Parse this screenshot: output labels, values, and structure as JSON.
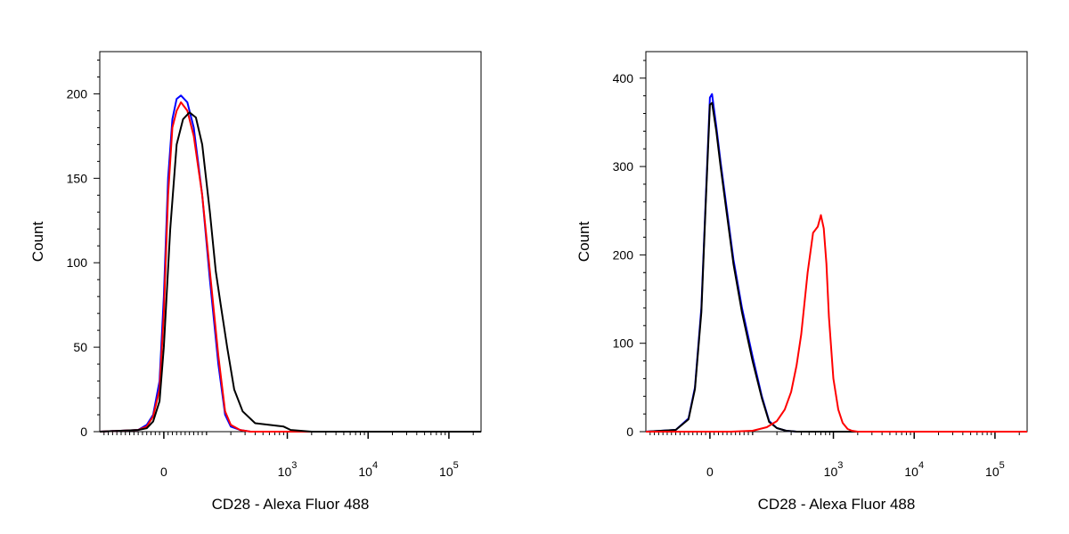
{
  "chart_data": [
    {
      "type": "line",
      "title": "",
      "xlabel": "CD28 - Alexa Fluor 488",
      "ylabel": "Count",
      "x_scale": "biexponential",
      "xlim": [
        -150,
        250000
      ],
      "ylim": [
        0,
        225
      ],
      "x_ticks": [
        {
          "value": 0,
          "base": "0",
          "exp": ""
        },
        {
          "value": 1000,
          "base": "10",
          "exp": "3"
        },
        {
          "value": 10000,
          "base": "10",
          "exp": "4"
        },
        {
          "value": 100000,
          "base": "10",
          "exp": "5"
        }
      ],
      "y_ticks": [
        0,
        50,
        100,
        150,
        200
      ],
      "grid": false,
      "series": [
        {
          "color": "#0000ff",
          "x": [
            -150,
            -60,
            -40,
            -25,
            -10,
            0,
            10,
            20,
            30,
            40,
            55,
            70,
            90,
            110,
            140,
            170,
            200,
            260,
            350,
            500,
            1000,
            3000,
            250000
          ],
          "y": [
            0,
            1,
            4,
            10,
            30,
            80,
            150,
            185,
            197,
            199,
            195,
            180,
            140,
            90,
            40,
            10,
            3,
            1,
            0,
            0,
            0,
            0,
            0
          ]
        },
        {
          "color": "#ff0000",
          "x": [
            -150,
            -60,
            -40,
            -25,
            -10,
            0,
            10,
            20,
            30,
            40,
            55,
            70,
            90,
            110,
            140,
            170,
            200,
            260,
            350,
            500,
            1000,
            3000,
            250000
          ],
          "y": [
            0,
            1,
            3,
            9,
            25,
            70,
            140,
            180,
            190,
            195,
            190,
            175,
            140,
            95,
            45,
            12,
            4,
            1,
            0,
            0,
            0,
            0,
            0
          ]
        },
        {
          "color": "#000000",
          "x": [
            -150,
            -60,
            -40,
            -25,
            -10,
            0,
            15,
            30,
            45,
            60,
            75,
            90,
            110,
            130,
            150,
            180,
            220,
            280,
            400,
            600,
            900,
            1100,
            2000,
            250000
          ],
          "y": [
            0,
            1,
            2,
            6,
            18,
            50,
            120,
            170,
            185,
            189,
            186,
            170,
            130,
            95,
            75,
            50,
            25,
            12,
            5,
            4,
            3,
            1,
            0,
            0
          ]
        }
      ]
    },
    {
      "type": "line",
      "title": "",
      "xlabel": "CD28 - Alexa Fluor 488",
      "ylabel": "Count",
      "x_scale": "biexponential",
      "xlim": [
        -150,
        250000
      ],
      "ylim": [
        0,
        430
      ],
      "x_ticks": [
        {
          "value": 0,
          "base": "0",
          "exp": ""
        },
        {
          "value": 1000,
          "base": "10",
          "exp": "3"
        },
        {
          "value": 10000,
          "base": "10",
          "exp": "4"
        },
        {
          "value": 100000,
          "base": "10",
          "exp": "5"
        }
      ],
      "y_ticks": [
        0,
        100,
        200,
        300,
        400
      ],
      "grid": false,
      "series": [
        {
          "color": "#0000ff",
          "x": [
            -150,
            -80,
            -50,
            -35,
            -20,
            -10,
            0,
            5,
            15,
            25,
            40,
            55,
            75,
            100,
            130,
            160,
            200,
            260,
            350,
            500,
            250000
          ],
          "y": [
            0,
            2,
            15,
            50,
            140,
            260,
            378,
            382,
            345,
            305,
            250,
            195,
            140,
            85,
            40,
            12,
            4,
            1,
            0,
            0,
            0
          ]
        },
        {
          "color": "#000000",
          "x": [
            -150,
            -80,
            -50,
            -35,
            -20,
            -10,
            0,
            5,
            15,
            25,
            40,
            55,
            75,
            100,
            130,
            160,
            200,
            260,
            350,
            500,
            250000
          ],
          "y": [
            0,
            2,
            14,
            48,
            135,
            255,
            370,
            372,
            340,
            300,
            245,
            190,
            135,
            80,
            38,
            11,
            4,
            1,
            0,
            0,
            0
          ]
        },
        {
          "color": "#ff0000",
          "x": [
            -150,
            50,
            100,
            150,
            200,
            250,
            300,
            350,
            400,
            480,
            560,
            640,
            700,
            760,
            820,
            880,
            1000,
            1150,
            1300,
            1500,
            1700,
            2000,
            3000,
            250000
          ],
          "y": [
            0,
            0,
            1,
            5,
            12,
            25,
            45,
            75,
            110,
            180,
            225,
            232,
            245,
            230,
            190,
            130,
            60,
            25,
            10,
            3,
            1,
            0,
            0,
            0
          ]
        }
      ]
    }
  ]
}
